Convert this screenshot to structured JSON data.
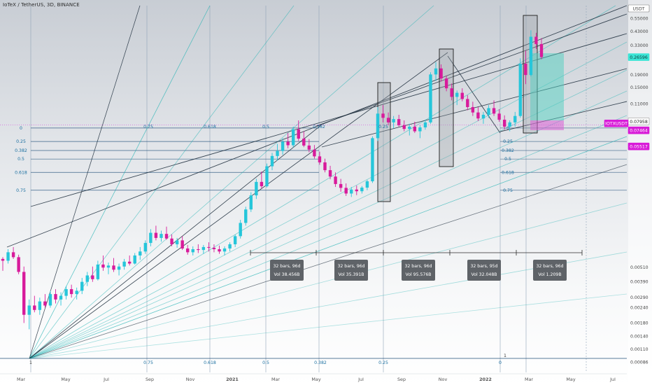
{
  "symbol": {
    "title": "IoTeX / TetherUS, 3D, BINANCE"
  },
  "colors": {
    "up": "#26c6da",
    "down": "#d81b9b",
    "fib_line": "#1f4e79",
    "fib_label": "#1a6fa0",
    "fan_dark": "#1b2b3a",
    "fan_teal": "#22b3b3",
    "current_price_bg": "#3be5d6",
    "magenta_label_bg": "#d81bd8",
    "box_fill": "#9aa0a6",
    "target_green": "#4fd0c0",
    "target_magenta": "#d95fd3",
    "stat_box": "#5f6368"
  },
  "chart_data": {
    "type": "candlestick",
    "title": "IoTeX / TetherUS, 3D, BINANCE",
    "price_scale": "log",
    "ylim": [
      0.00075,
      0.7
    ],
    "y_ticks": [
      "0.55000",
      "0.43000",
      "0.33000",
      "0.19000",
      "0.15000",
      "0.11000",
      "0.00510",
      "0.00390",
      "0.00290",
      "0.00240",
      "0.00180",
      "0.00140",
      "0.00110",
      "0.00086"
    ],
    "x_ticks": [
      "Mar",
      "May",
      "Jul",
      "Sep",
      "Nov",
      "2021",
      "Mar",
      "May",
      "Jul",
      "Sep",
      "Nov",
      "2022",
      "Mar",
      "May",
      "Jul"
    ],
    "price_badges": [
      {
        "label": "USDT",
        "value": 0.62,
        "style": "header"
      },
      {
        "label": "0.26596",
        "value": 0.26596,
        "style": "current"
      },
      {
        "label": "0.07958",
        "value": 0.07958,
        "style": "white"
      },
      {
        "label": "IOTXUSDT",
        "value": 0.0746,
        "style": "magenta"
      },
      {
        "label": "0.07464",
        "value": 0.07464,
        "style": "magenta"
      },
      {
        "label": "0.05517",
        "value": 0.05517,
        "style": "magenta"
      }
    ],
    "candles": [
      [
        0.006,
        0.0062,
        0.0048,
        0.0058
      ],
      [
        0.0058,
        0.0072,
        0.0055,
        0.0068
      ],
      [
        0.0068,
        0.0075,
        0.006,
        0.0062
      ],
      [
        0.0062,
        0.0065,
        0.0045,
        0.0047
      ],
      [
        0.0047,
        0.0052,
        0.0018,
        0.0021
      ],
      [
        0.0021,
        0.0028,
        0.0016,
        0.0025
      ],
      [
        0.0025,
        0.003,
        0.0022,
        0.0023
      ],
      [
        0.0023,
        0.0029,
        0.0021,
        0.0027
      ],
      [
        0.0027,
        0.0031,
        0.0024,
        0.0025
      ],
      [
        0.0025,
        0.0033,
        0.0024,
        0.0031
      ],
      [
        0.0031,
        0.0034,
        0.0026,
        0.0028
      ],
      [
        0.0028,
        0.0032,
        0.0025,
        0.003
      ],
      [
        0.003,
        0.0036,
        0.0028,
        0.0034
      ],
      [
        0.0034,
        0.0037,
        0.0029,
        0.0031
      ],
      [
        0.0031,
        0.0035,
        0.0028,
        0.0033
      ],
      [
        0.0033,
        0.0042,
        0.0031,
        0.0039
      ],
      [
        0.0039,
        0.0047,
        0.0036,
        0.0044
      ],
      [
        0.0044,
        0.0052,
        0.0039,
        0.0041
      ],
      [
        0.0041,
        0.0058,
        0.004,
        0.0054
      ],
      [
        0.0054,
        0.0064,
        0.0048,
        0.0051
      ],
      [
        0.0051,
        0.0056,
        0.0045,
        0.0053
      ],
      [
        0.0053,
        0.0061,
        0.0047,
        0.0049
      ],
      [
        0.0049,
        0.0055,
        0.0044,
        0.0052
      ],
      [
        0.0052,
        0.006,
        0.0049,
        0.0057
      ],
      [
        0.0057,
        0.0064,
        0.0053,
        0.0055
      ],
      [
        0.0055,
        0.0067,
        0.0054,
        0.0064
      ],
      [
        0.0064,
        0.0075,
        0.0059,
        0.0069
      ],
      [
        0.0069,
        0.0085,
        0.0066,
        0.0081
      ],
      [
        0.0081,
        0.0105,
        0.0076,
        0.0098
      ],
      [
        0.0098,
        0.0112,
        0.0085,
        0.0089
      ],
      [
        0.0089,
        0.0102,
        0.0083,
        0.0096
      ],
      [
        0.0096,
        0.011,
        0.0086,
        0.0088
      ],
      [
        0.0088,
        0.0095,
        0.0076,
        0.0079
      ],
      [
        0.0079,
        0.0089,
        0.0074,
        0.0085
      ],
      [
        0.0085,
        0.0092,
        0.0071,
        0.0073
      ],
      [
        0.0073,
        0.0078,
        0.0065,
        0.0068
      ],
      [
        0.0068,
        0.0076,
        0.0064,
        0.0072
      ],
      [
        0.0072,
        0.0079,
        0.0067,
        0.0071
      ],
      [
        0.0071,
        0.0078,
        0.0066,
        0.0075
      ],
      [
        0.0075,
        0.0082,
        0.0069,
        0.0074
      ],
      [
        0.0074,
        0.0079,
        0.0068,
        0.0072
      ],
      [
        0.0072,
        0.0077,
        0.0066,
        0.0069
      ],
      [
        0.0069,
        0.0076,
        0.0064,
        0.0073
      ],
      [
        0.0073,
        0.0082,
        0.0069,
        0.0079
      ],
      [
        0.0079,
        0.0095,
        0.0075,
        0.0092
      ],
      [
        0.0092,
        0.0125,
        0.0088,
        0.0118
      ],
      [
        0.0118,
        0.016,
        0.0112,
        0.0152
      ],
      [
        0.0152,
        0.021,
        0.0145,
        0.0198
      ],
      [
        0.0198,
        0.027,
        0.0185,
        0.0255
      ],
      [
        0.0255,
        0.031,
        0.0225,
        0.0235
      ],
      [
        0.0235,
        0.036,
        0.023,
        0.0342
      ],
      [
        0.0342,
        0.044,
        0.0318,
        0.0415
      ],
      [
        0.0415,
        0.052,
        0.038,
        0.0456
      ],
      [
        0.0456,
        0.058,
        0.0425,
        0.0542
      ],
      [
        0.0542,
        0.064,
        0.048,
        0.0508
      ],
      [
        0.0508,
        0.072,
        0.0488,
        0.0685
      ],
      [
        0.0685,
        0.081,
        0.055,
        0.0575
      ],
      [
        0.0575,
        0.066,
        0.049,
        0.0505
      ],
      [
        0.0505,
        0.057,
        0.0445,
        0.0468
      ],
      [
        0.0468,
        0.051,
        0.0395,
        0.0412
      ],
      [
        0.0412,
        0.045,
        0.0352,
        0.0368
      ],
      [
        0.0368,
        0.0395,
        0.0305,
        0.0318
      ],
      [
        0.0318,
        0.0345,
        0.0268,
        0.0282
      ],
      [
        0.0282,
        0.0305,
        0.0232,
        0.0245
      ],
      [
        0.0245,
        0.027,
        0.0212,
        0.0228
      ],
      [
        0.0228,
        0.0248,
        0.0196,
        0.0205
      ],
      [
        0.0205,
        0.0232,
        0.0192,
        0.0221
      ],
      [
        0.0221,
        0.0238,
        0.0199,
        0.0214
      ],
      [
        0.0214,
        0.0236,
        0.0205,
        0.0229
      ],
      [
        0.0229,
        0.0265,
        0.0218,
        0.0258
      ],
      [
        0.0258,
        0.06,
        0.025,
        0.058
      ],
      [
        0.058,
        0.104,
        0.055,
        0.092
      ],
      [
        0.092,
        0.108,
        0.078,
        0.085
      ],
      [
        0.085,
        0.094,
        0.074,
        0.078
      ],
      [
        0.078,
        0.088,
        0.07,
        0.083
      ],
      [
        0.083,
        0.09,
        0.072,
        0.074
      ],
      [
        0.074,
        0.081,
        0.066,
        0.069
      ],
      [
        0.069,
        0.076,
        0.061,
        0.072
      ],
      [
        0.072,
        0.079,
        0.064,
        0.066
      ],
      [
        0.066,
        0.074,
        0.058,
        0.071
      ],
      [
        0.071,
        0.082,
        0.068,
        0.078
      ],
      [
        0.078,
        0.2,
        0.076,
        0.192
      ],
      [
        0.192,
        0.242,
        0.17,
        0.215
      ],
      [
        0.215,
        0.232,
        0.168,
        0.178
      ],
      [
        0.178,
        0.188,
        0.14,
        0.148
      ],
      [
        0.148,
        0.162,
        0.118,
        0.126
      ],
      [
        0.126,
        0.142,
        0.108,
        0.136
      ],
      [
        0.136,
        0.148,
        0.116,
        0.121
      ],
      [
        0.121,
        0.13,
        0.098,
        0.104
      ],
      [
        0.104,
        0.115,
        0.088,
        0.094
      ],
      [
        0.094,
        0.104,
        0.08,
        0.084
      ],
      [
        0.084,
        0.095,
        0.076,
        0.09
      ],
      [
        0.09,
        0.108,
        0.085,
        0.102
      ],
      [
        0.102,
        0.118,
        0.088,
        0.092
      ],
      [
        0.092,
        0.1,
        0.079,
        0.082
      ],
      [
        0.082,
        0.089,
        0.068,
        0.072
      ],
      [
        0.072,
        0.081,
        0.066,
        0.078
      ],
      [
        0.078,
        0.095,
        0.072,
        0.088
      ],
      [
        0.088,
        0.26,
        0.085,
        0.235
      ],
      [
        0.235,
        0.3,
        0.16,
        0.19
      ],
      [
        0.19,
        0.44,
        0.185,
        0.39
      ],
      [
        0.39,
        0.42,
        0.31,
        0.34
      ],
      [
        0.34,
        0.38,
        0.255,
        0.266
      ]
    ]
  },
  "fib_levels": {
    "left": [
      {
        "label": "0",
        "value": 0.0702
      },
      {
        "label": "0.25",
        "value": 0.0545
      },
      {
        "label": "0.382",
        "value": 0.046
      },
      {
        "label": "0.5",
        "value": 0.0392
      },
      {
        "label": "0.618",
        "value": 0.0305
      },
      {
        "label": "0.75",
        "value": 0.0218
      }
    ],
    "right": [
      {
        "label": "0",
        "value": 0.0702
      },
      {
        "label": "0.25",
        "value": 0.0545
      },
      {
        "label": "0.382",
        "value": 0.046
      },
      {
        "label": "0.5",
        "value": 0.0392
      },
      {
        "label": "0.618",
        "value": 0.0305
      },
      {
        "label": "0.75",
        "value": 0.0218
      }
    ],
    "top_labels": [
      "0.75",
      "0.618",
      "0.5",
      "0.382",
      "0.25"
    ],
    "bottom_labels": [
      "1",
      "0.75",
      "0.618",
      "0.5",
      "0.382",
      "0.25",
      "0",
      "1"
    ]
  },
  "stat_boxes": [
    {
      "bars": "32 bars, 96d",
      "vol": "Vol 38.456B"
    },
    {
      "bars": "32 bars, 96d",
      "vol": "Vol 35.391B"
    },
    {
      "bars": "32 bars, 96d",
      "vol": "Vol 95.576B"
    },
    {
      "bars": "32 bars, 95d",
      "vol": "Vol 32.048B"
    },
    {
      "bars": "32 bars, 96d",
      "vol": "Vol 1.209B"
    }
  ]
}
